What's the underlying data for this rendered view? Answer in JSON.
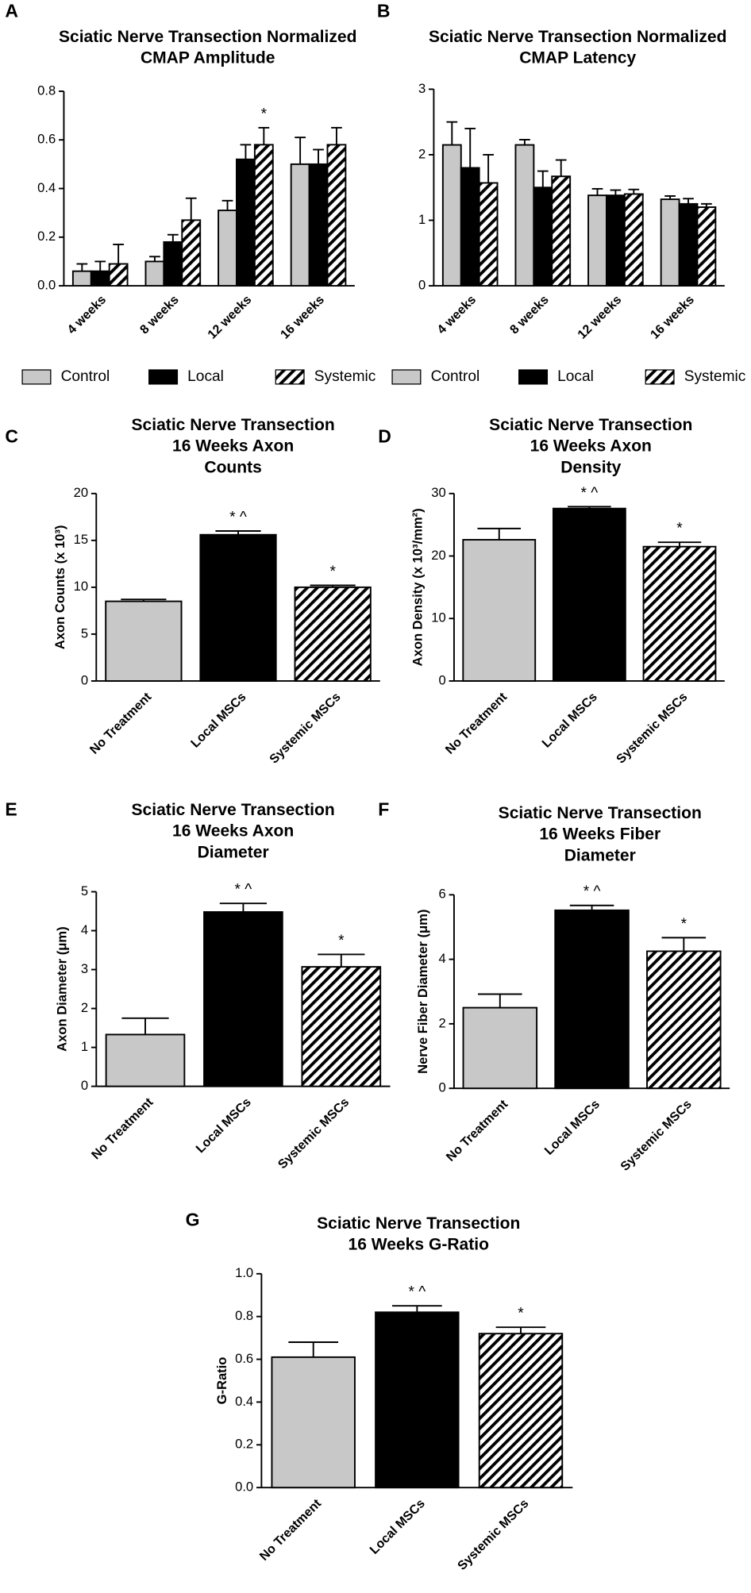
{
  "chart_data": [
    {
      "type": "grouped_bar",
      "panel": "A",
      "title": [
        "Sciatic Nerve Transection Normalized",
        "CMAP Amplitude"
      ],
      "categories": [
        "4 weeks",
        "8 weeks",
        "12 weeks",
        "16 weeks"
      ],
      "series": [
        {
          "name": "Control",
          "color": "#c8c8c8",
          "values": [
            0.06,
            0.1,
            0.31,
            0.5
          ],
          "errors": [
            0.03,
            0.02,
            0.04,
            0.11
          ]
        },
        {
          "name": "Local",
          "color": "#000000",
          "values": [
            0.06,
            0.18,
            0.52,
            0.5
          ],
          "errors": [
            0.04,
            0.03,
            0.06,
            0.06
          ]
        },
        {
          "name": "Systemic",
          "color": "#ffffff",
          "pattern": "hatch",
          "values": [
            0.09,
            0.27,
            0.58,
            0.58
          ],
          "errors": [
            0.08,
            0.09,
            0.07,
            0.07
          ],
          "annotations": [
            null,
            null,
            "*",
            null
          ]
        }
      ],
      "ylim": [
        0,
        0.8
      ],
      "yticks": [
        {
          "value": 0,
          "label": "0.0"
        },
        0.2,
        0.4,
        0.6,
        0.8
      ],
      "legend": "bottom"
    },
    {
      "type": "grouped_bar",
      "panel": "B",
      "title": [
        "Sciatic Nerve Transection Normalized",
        "CMAP Latency"
      ],
      "categories": [
        "4 weeks",
        "8 weeks",
        "12 weeks",
        "16 weeks"
      ],
      "series": [
        {
          "name": "Control",
          "color": "#c8c8c8",
          "values": [
            2.15,
            2.15,
            1.38,
            1.32
          ],
          "errors": [
            0.35,
            0.08,
            0.1,
            0.05
          ]
        },
        {
          "name": "Local",
          "color": "#000000",
          "values": [
            1.8,
            1.5,
            1.38,
            1.25
          ],
          "errors": [
            0.6,
            0.25,
            0.08,
            0.08
          ]
        },
        {
          "name": "Systemic",
          "color": "#ffffff",
          "pattern": "hatch",
          "values": [
            1.57,
            1.67,
            1.4,
            1.2
          ],
          "errors": [
            0.43,
            0.25,
            0.07,
            0.05
          ]
        }
      ],
      "ylim": [
        0,
        3
      ],
      "yticks": [
        0,
        1,
        2,
        3
      ],
      "legend": "bottom"
    },
    {
      "type": "bar",
      "panel": "C",
      "title": [
        "Sciatic Nerve Transection",
        "16 Weeks Axon",
        "Counts"
      ],
      "ylabel": "Axon Counts (x 10³)",
      "categories": [
        "No Treatment",
        "Local MSCs",
        "Systemic MSCs"
      ],
      "values": [
        8.5,
        15.6,
        10.0
      ],
      "errors": [
        0.2,
        0.4,
        0.2
      ],
      "annotations": [
        null,
        "* ^",
        "*"
      ],
      "colors": [
        "#c8c8c8",
        "#000000",
        "#ffffff"
      ],
      "patterns": [
        null,
        null,
        "hatch"
      ],
      "ylim": [
        0,
        20
      ],
      "yticks": [
        0,
        5,
        10,
        15,
        20
      ]
    },
    {
      "type": "bar",
      "panel": "D",
      "title": [
        "Sciatic Nerve Transection",
        "16 Weeks Axon",
        "Density"
      ],
      "ylabel": "Axon Density (x 10³/mm²)",
      "categories": [
        "No Treatment",
        "Local MSCs",
        "Systemic MSCs"
      ],
      "values": [
        22.6,
        27.6,
        21.5
      ],
      "errors": [
        1.8,
        0.3,
        0.7
      ],
      "annotations": [
        null,
        "* ^",
        "*"
      ],
      "colors": [
        "#c8c8c8",
        "#000000",
        "#ffffff"
      ],
      "patterns": [
        null,
        null,
        "hatch"
      ],
      "ylim": [
        0,
        30
      ],
      "yticks": [
        0,
        10,
        20,
        30
      ]
    },
    {
      "type": "bar",
      "panel": "E",
      "title": [
        "Sciatic Nerve Transection",
        "16 Weeks Axon",
        "Diameter"
      ],
      "ylabel": "Axon Diameter (μm)",
      "categories": [
        "No Treatment",
        "Local MSCs",
        "Systemic MSCs"
      ],
      "values": [
        1.33,
        4.48,
        3.07
      ],
      "errors": [
        0.42,
        0.22,
        0.32
      ],
      "annotations": [
        null,
        "* ^",
        "*"
      ],
      "colors": [
        "#c8c8c8",
        "#000000",
        "#ffffff"
      ],
      "patterns": [
        null,
        null,
        "hatch"
      ],
      "ylim": [
        0,
        5
      ],
      "yticks": [
        0,
        1,
        2,
        3,
        4,
        5
      ]
    },
    {
      "type": "bar",
      "panel": "F",
      "title": [
        "Sciatic Nerve Transection",
        "16 Weeks Fiber",
        "Diameter"
      ],
      "ylabel": "Nerve Fiber Diameter (μm)",
      "categories": [
        "No Treatment",
        "Local MSCs",
        "Systemic MSCs"
      ],
      "values": [
        2.5,
        5.52,
        4.25
      ],
      "errors": [
        0.42,
        0.15,
        0.42
      ],
      "annotations": [
        null,
        "* ^",
        "*"
      ],
      "colors": [
        "#c8c8c8",
        "#000000",
        "#ffffff"
      ],
      "patterns": [
        null,
        null,
        "hatch"
      ],
      "ylim": [
        0,
        6
      ],
      "yticks": [
        0,
        2,
        4,
        6
      ]
    },
    {
      "type": "bar",
      "panel": "G",
      "title": [
        "Sciatic Nerve Transection",
        "16 Weeks G-Ratio"
      ],
      "ylabel": "G-Ratio",
      "categories": [
        "No Treatment",
        "Local MSCs",
        "Systemic MSCs"
      ],
      "values": [
        0.61,
        0.82,
        0.72
      ],
      "errors": [
        0.07,
        0.03,
        0.03
      ],
      "annotations": [
        null,
        "* ^",
        "*"
      ],
      "colors": [
        "#c8c8c8",
        "#000000",
        "#ffffff"
      ],
      "patterns": [
        null,
        null,
        "hatch"
      ],
      "ylim": [
        0,
        1.0
      ],
      "yticks": [
        {
          "value": 0,
          "label": "0.0"
        },
        0.2,
        0.4,
        0.6,
        0.8,
        {
          "value": 1.0,
          "label": "1.0"
        }
      ]
    }
  ]
}
